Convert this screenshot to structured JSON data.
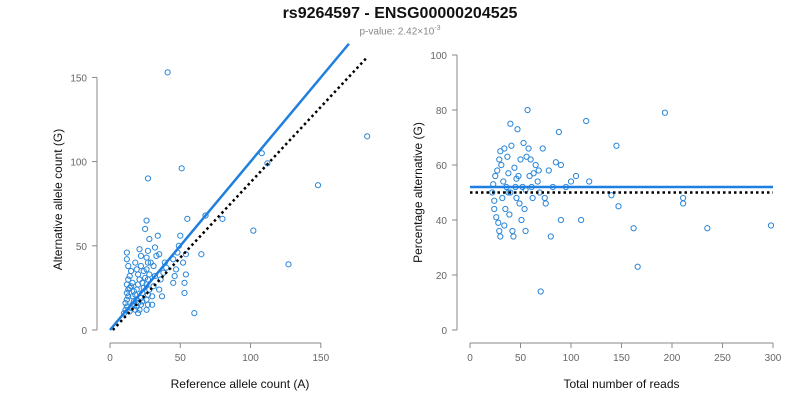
{
  "header": {
    "title": "rs9264597 - ENSG00000204525",
    "pvalue_prefix": "p-value: 2.42×10",
    "pvalue_exp": "-3"
  },
  "colors": {
    "points": "#2a86d8",
    "fit": "#1f7fe0",
    "reference": "#000000",
    "axis": "#888888"
  },
  "chart_data": [
    {
      "type": "scatter",
      "xlabel": "Reference allele count (A)",
      "ylabel": "Alternative allele count (G)",
      "xlim": [
        0,
        185
      ],
      "ylim": [
        0,
        155
      ],
      "xticks": [
        0,
        50,
        100,
        150
      ],
      "yticks": [
        0,
        50,
        100,
        150
      ],
      "grid": false,
      "points": [
        [
          10,
          10
        ],
        [
          11,
          12
        ],
        [
          12,
          14
        ],
        [
          11,
          16
        ],
        [
          12,
          18
        ],
        [
          13,
          20
        ],
        [
          12,
          22
        ],
        [
          13,
          24
        ],
        [
          14,
          25
        ],
        [
          12,
          27
        ],
        [
          13,
          30
        ],
        [
          14,
          32
        ],
        [
          15,
          35
        ],
        [
          13,
          38
        ],
        [
          12,
          42
        ],
        [
          12,
          46
        ],
        [
          14,
          11
        ],
        [
          15,
          13
        ],
        [
          16,
          15
        ],
        [
          17,
          17
        ],
        [
          16,
          20
        ],
        [
          17,
          23
        ],
        [
          15,
          26
        ],
        [
          16,
          28
        ],
        [
          18,
          12
        ],
        [
          19,
          14
        ],
        [
          20,
          16
        ],
        [
          19,
          18
        ],
        [
          18,
          21
        ],
        [
          19,
          24
        ],
        [
          20,
          27
        ],
        [
          21,
          30
        ],
        [
          20,
          33
        ],
        [
          19,
          36
        ],
        [
          18,
          40
        ],
        [
          22,
          44
        ],
        [
          21,
          12
        ],
        [
          22,
          15
        ],
        [
          23,
          17
        ],
        [
          22,
          19
        ],
        [
          23,
          22
        ],
        [
          24,
          25
        ],
        [
          23,
          28
        ],
        [
          25,
          31
        ],
        [
          24,
          35
        ],
        [
          22,
          38
        ],
        [
          21,
          48
        ],
        [
          20,
          10
        ],
        [
          26,
          12
        ],
        [
          27,
          15
        ],
        [
          26,
          18
        ],
        [
          27,
          21
        ],
        [
          28,
          24
        ],
        [
          26,
          27
        ],
        [
          27,
          30
        ],
        [
          28,
          33
        ],
        [
          26,
          36
        ],
        [
          27,
          40
        ],
        [
          26,
          43
        ],
        [
          27,
          47
        ],
        [
          28,
          54
        ],
        [
          25,
          60
        ],
        [
          26,
          65
        ],
        [
          27,
          90
        ],
        [
          30,
          20
        ],
        [
          31,
          26
        ],
        [
          32,
          32
        ],
        [
          31,
          38
        ],
        [
          33,
          44
        ],
        [
          34,
          56
        ],
        [
          32,
          49
        ],
        [
          30,
          15
        ],
        [
          29,
          40
        ],
        [
          35,
          24
        ],
        [
          36,
          30
        ],
        [
          37,
          20
        ],
        [
          38,
          34
        ],
        [
          39,
          40
        ],
        [
          35,
          45
        ],
        [
          40,
          37
        ],
        [
          41,
          153
        ],
        [
          45,
          42
        ],
        [
          46,
          32
        ],
        [
          47,
          36
        ],
        [
          48,
          46
        ],
        [
          49,
          50
        ],
        [
          50,
          56
        ],
        [
          51,
          96
        ],
        [
          52,
          40
        ],
        [
          53,
          22
        ],
        [
          54,
          45
        ],
        [
          53,
          28
        ],
        [
          54,
          33
        ],
        [
          55,
          66
        ],
        [
          60,
          10
        ],
        [
          65,
          45
        ],
        [
          68,
          68
        ],
        [
          80,
          66
        ],
        [
          102,
          59
        ],
        [
          108,
          105
        ],
        [
          112,
          99
        ],
        [
          127,
          39
        ],
        [
          148,
          86
        ],
        [
          183,
          115
        ],
        [
          45,
          28
        ]
      ],
      "fit_line": [
        [
          0,
          0
        ],
        [
          170,
          170
        ]
      ],
      "reference_line": [
        [
          2,
          0
        ],
        [
          183,
          162
        ]
      ]
    },
    {
      "type": "scatter",
      "xlabel": "Total number of reads",
      "ylabel": "Percentage alternative (G)",
      "xlim": [
        0,
        300
      ],
      "ylim": [
        0,
        100
      ],
      "xticks": [
        0,
        50,
        100,
        150,
        200,
        250,
        300
      ],
      "yticks": [
        0,
        20,
        40,
        60,
        80,
        100
      ],
      "grid": false,
      "points": [
        [
          22,
          50
        ],
        [
          23,
          53
        ],
        [
          24,
          47
        ],
        [
          24,
          44
        ],
        [
          25,
          56
        ],
        [
          26,
          41
        ],
        [
          27,
          58
        ],
        [
          28,
          39
        ],
        [
          29,
          62
        ],
        [
          29,
          36
        ],
        [
          30,
          65
        ],
        [
          30,
          34
        ],
        [
          31,
          60
        ],
        [
          32,
          48
        ],
        [
          33,
          54
        ],
        [
          34,
          66
        ],
        [
          34,
          38
        ],
        [
          35,
          44
        ],
        [
          36,
          52
        ],
        [
          37,
          63
        ],
        [
          38,
          57
        ],
        [
          39,
          42
        ],
        [
          40,
          75
        ],
        [
          40,
          50
        ],
        [
          41,
          67
        ],
        [
          42,
          36
        ],
        [
          43,
          34
        ],
        [
          44,
          59
        ],
        [
          45,
          52
        ],
        [
          46,
          48
        ],
        [
          47,
          73
        ],
        [
          48,
          56
        ],
        [
          49,
          46
        ],
        [
          50,
          62
        ],
        [
          51,
          40
        ],
        [
          52,
          52
        ],
        [
          53,
          68
        ],
        [
          54,
          44
        ],
        [
          55,
          36
        ],
        [
          56,
          63
        ],
        [
          57,
          80
        ],
        [
          58,
          66
        ],
        [
          59,
          56
        ],
        [
          60,
          62
        ],
        [
          61,
          52
        ],
        [
          62,
          48
        ],
        [
          65,
          60
        ],
        [
          67,
          54
        ],
        [
          68,
          58
        ],
        [
          70,
          14
        ],
        [
          72,
          66
        ],
        [
          75,
          46
        ],
        [
          78,
          58
        ],
        [
          80,
          34
        ],
        [
          82,
          52
        ],
        [
          85,
          61
        ],
        [
          88,
          72
        ],
        [
          90,
          40
        ],
        [
          95,
          52
        ],
        [
          100,
          54
        ],
        [
          105,
          56
        ],
        [
          110,
          40
        ],
        [
          115,
          76
        ],
        [
          118,
          54
        ],
        [
          140,
          49
        ],
        [
          145,
          67
        ],
        [
          147,
          45
        ],
        [
          162,
          37
        ],
        [
          166,
          23
        ],
        [
          193,
          79
        ],
        [
          211,
          48
        ],
        [
          211,
          46
        ],
        [
          235,
          37
        ],
        [
          298,
          38
        ],
        [
          38,
          50
        ],
        [
          46,
          55
        ],
        [
          55,
          51
        ],
        [
          63,
          57
        ],
        [
          69,
          50
        ],
        [
          74,
          48
        ],
        [
          90,
          60
        ]
      ],
      "fit_line": [
        [
          0,
          52
        ],
        [
          300,
          52
        ]
      ],
      "reference_line": [
        [
          0,
          50
        ],
        [
          300,
          50
        ]
      ]
    }
  ]
}
